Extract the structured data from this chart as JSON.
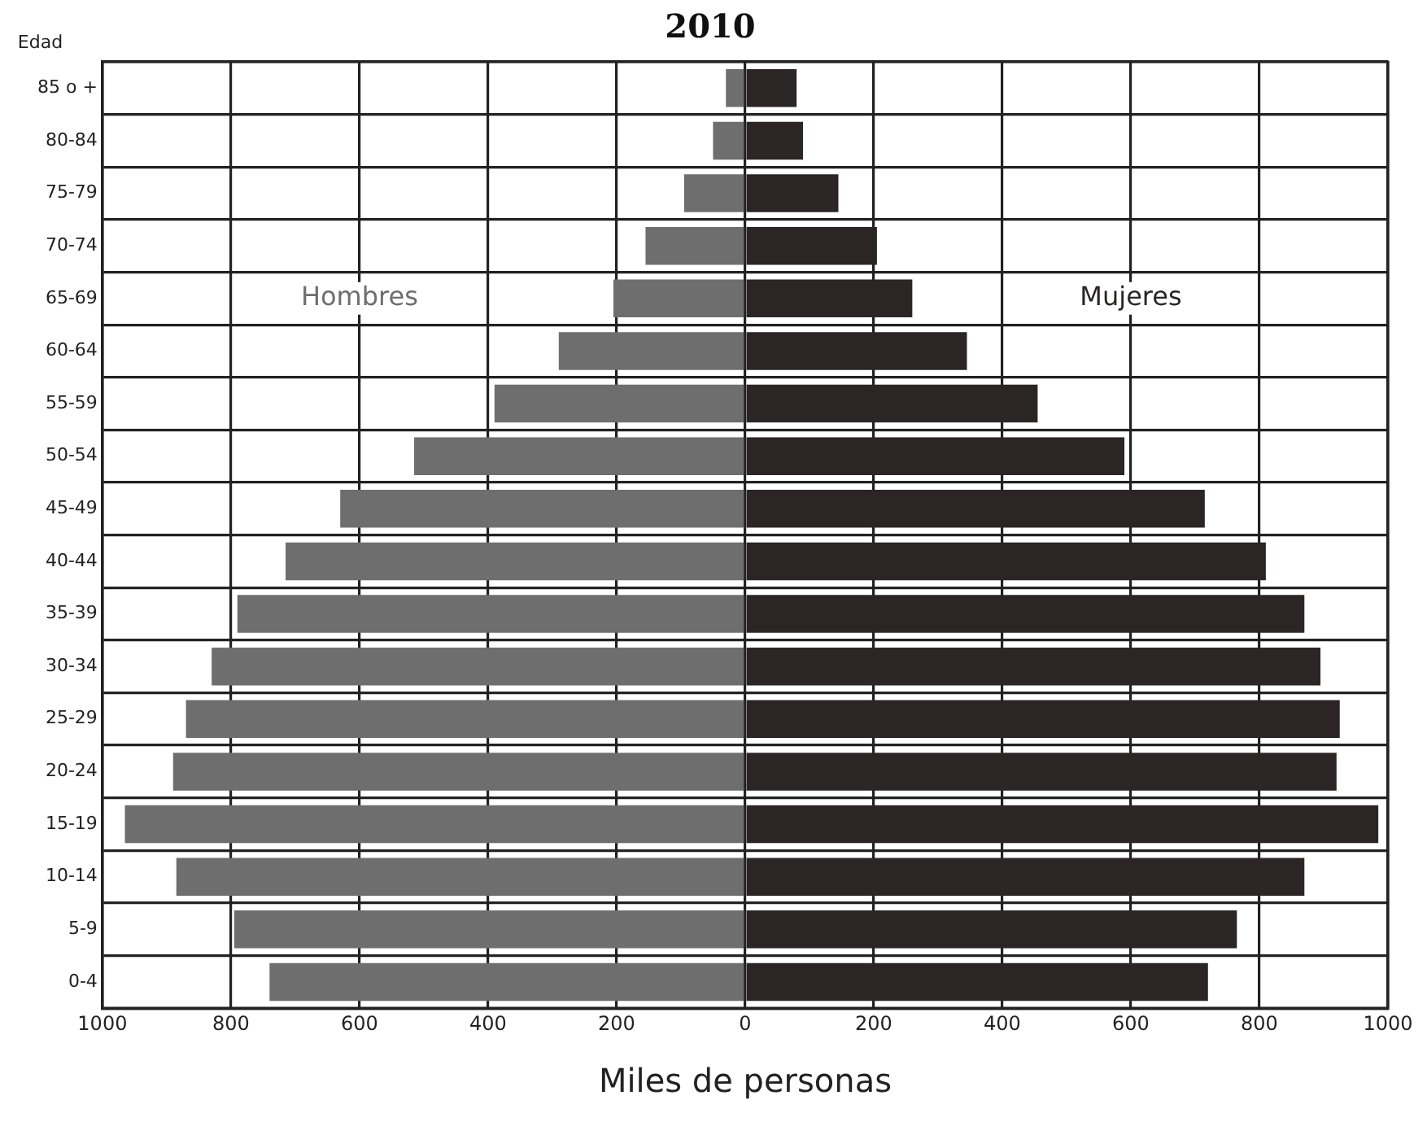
{
  "chart_data": {
    "type": "bar",
    "orientation": "horizontal",
    "stacked": true,
    "title": "2010",
    "xlabel": "Miles de personas",
    "ylabel": "Edad",
    "categories": [
      "85 o +",
      "80-84",
      "75-79",
      "70-74",
      "65-69",
      "60-64",
      "55-59",
      "50-54",
      "45-49",
      "40-44",
      "35-39",
      "30-34",
      "25-29",
      "20-24",
      "15-19",
      "10-14",
      "5-9",
      "0-4"
    ],
    "series": [
      {
        "name": "Hombres",
        "color": "#6e6e6e",
        "values": [
          -30,
          -50,
          -95,
          -155,
          -205,
          -290,
          -390,
          -515,
          -630,
          -715,
          -790,
          -830,
          -870,
          -890,
          -965,
          -885,
          -795,
          -740
        ]
      },
      {
        "name": "Mujeres",
        "color": "#2b2526",
        "values": [
          80,
          90,
          145,
          205,
          260,
          345,
          455,
          590,
          715,
          810,
          870,
          895,
          925,
          920,
          985,
          870,
          765,
          720
        ]
      }
    ],
    "xlim": [
      -1000,
      1000
    ],
    "xticks": [
      {
        "value": -1000,
        "label": "1000"
      },
      {
        "value": -800,
        "label": "800"
      },
      {
        "value": -600,
        "label": "600"
      },
      {
        "value": -400,
        "label": "400"
      },
      {
        "value": -200,
        "label": "200"
      },
      0,
      200,
      400,
      600,
      800,
      1000
    ],
    "grid": true,
    "legend": false
  }
}
